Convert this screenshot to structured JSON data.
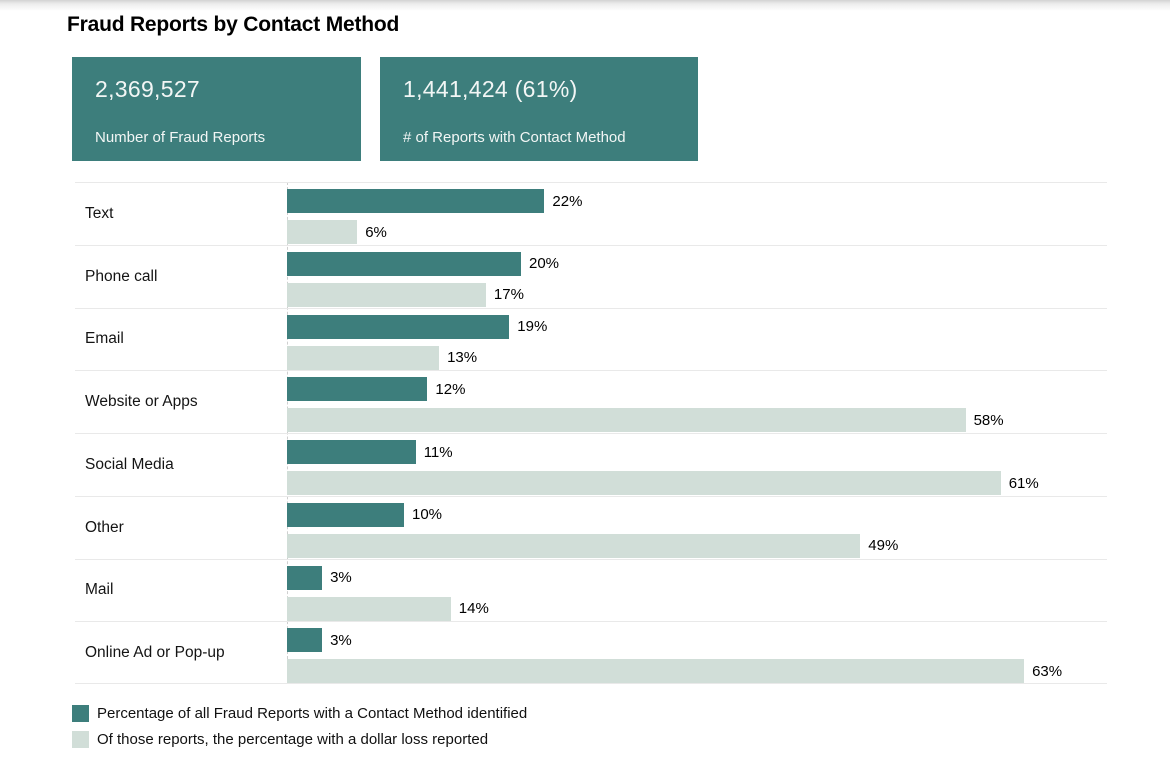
{
  "page": {
    "title": "Fraud Reports by Contact Method"
  },
  "stats": [
    {
      "value": "2,369,527",
      "label": "Number of Fraud Reports"
    },
    {
      "value": "1,441,424 (61%)",
      "label": "# of Reports with Contact Method"
    }
  ],
  "colors": {
    "teal": "#3d7e7c",
    "light_green": "#d1ded8",
    "divider": "#e9e9e9",
    "stat_text": "#f2f6f5"
  },
  "chart_data": {
    "type": "bar",
    "orientation": "horizontal",
    "title": "Fraud Reports by Contact Method",
    "categories": [
      "Text",
      "Phone call",
      "Email",
      "Website or Apps",
      "Social Media",
      "Other",
      "Mail",
      "Online Ad or Pop-up"
    ],
    "series": [
      {
        "name": "Percentage of all Fraud Reports with a Contact Method identified",
        "color": "#3d7e7c",
        "values": [
          22,
          20,
          19,
          12,
          11,
          10,
          3,
          3
        ]
      },
      {
        "name": "Of those reports, the percentage with a dollar loss reported",
        "color": "#d1ded8",
        "values": [
          6,
          17,
          13,
          58,
          61,
          49,
          14,
          63
        ]
      }
    ],
    "value_suffix": "%",
    "xlim": [
      0,
      70
    ],
    "grid": false,
    "legend_position": "bottom"
  }
}
